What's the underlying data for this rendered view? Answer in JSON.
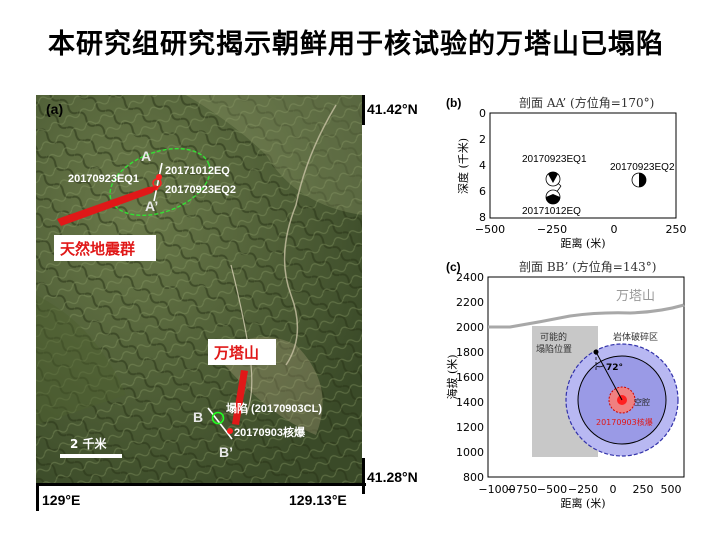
{
  "title": "本研究组研究揭示朝鲜用于核试验的万塔山已塌陷",
  "map": {
    "panel_label": "(a)",
    "lat_top": "41.42°N",
    "lat_bottom": "41.28°N",
    "lon_left": "129°E",
    "lon_right": "129.13°E",
    "label_A": "A",
    "label_A_prime": "A’",
    "label_B": "B",
    "label_B_prime": "B’",
    "eq1": "20170923EQ1",
    "eq_oct": "20171012EQ",
    "eq2": "20170923EQ2",
    "swarm": "天然地震群",
    "mountain": "万塔山",
    "collapse": "塌陷 (20170903CL)",
    "nuclear": "20170903核爆",
    "scale": "2 千米"
  },
  "panel_b": {
    "panel_label": "(b)",
    "title": "剖面 AA’ (方位角=170°)",
    "ylabel": "深度 (千米)",
    "xlabel": "距离 (米)",
    "x_ticks": [
      "−500",
      "−250",
      "0",
      "250"
    ],
    "y_ticks": [
      "0",
      "2",
      "4",
      "6",
      "8"
    ],
    "events": [
      "20170923EQ1",
      "20171012EQ",
      "20170923EQ2"
    ]
  },
  "panel_c": {
    "panel_label": "(c)",
    "title": "剖面 BB’ (方位角=143°)",
    "ylabel": "海拔 (米)",
    "xlabel": "距离 (米)",
    "x_ticks": [
      "−1000",
      "−750",
      "−500",
      "−250",
      "0",
      "250",
      "500"
    ],
    "y_ticks": [
      "2400",
      "2200",
      "2000",
      "1800",
      "1600",
      "1400",
      "1200",
      "1000",
      "800"
    ],
    "mountain": "万塔山",
    "possible_collapse": [
      "可能的",
      "塌陷位置"
    ],
    "rock_zone": "岩体破碎区",
    "angle": "72°",
    "cavity": "空腔",
    "event": "20170903核爆"
  }
}
